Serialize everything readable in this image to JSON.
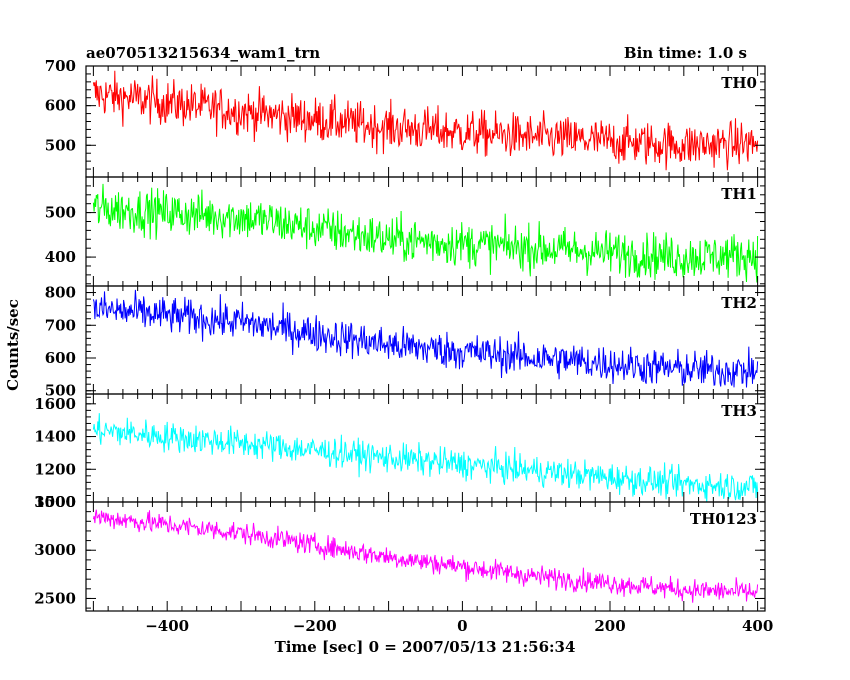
{
  "header": {
    "title": "ae070513215634_wam1_trn",
    "bin_time": "Bin time: 1.0 s"
  },
  "chart_data": {
    "type": "line",
    "xlabel": "Time [sec] 0 = 2007/05/13 21:56:34",
    "ylabel": "Counts/sec",
    "xlim": [
      -510,
      410
    ],
    "xticks": [
      -400,
      -200,
      0,
      200,
      400
    ],
    "panels": [
      {
        "name": "TH0",
        "color": "#ff0000",
        "ylim": [
          420,
          700
        ],
        "yticks": [
          500,
          600,
          700
        ],
        "trend": [
          [
            -500,
            630
          ],
          [
            -300,
            585
          ],
          [
            -100,
            545
          ],
          [
            100,
            520
          ],
          [
            300,
            500
          ],
          [
            400,
            505
          ]
        ],
        "noise": 28
      },
      {
        "name": "TH1",
        "color": "#00ff00",
        "ylim": [
          335,
          580
        ],
        "yticks": [
          400,
          500
        ],
        "trend": [
          [
            -500,
            510
          ],
          [
            -300,
            490
          ],
          [
            -100,
            440
          ],
          [
            100,
            420
          ],
          [
            300,
            400
          ],
          [
            400,
            405
          ]
        ],
        "noise": 25
      },
      {
        "name": "TH2",
        "color": "#0000ff",
        "ylim": [
          490,
          820
        ],
        "yticks": [
          500,
          600,
          700,
          800
        ],
        "trend": [
          [
            -500,
            750
          ],
          [
            -300,
            710
          ],
          [
            -100,
            640
          ],
          [
            100,
            600
          ],
          [
            300,
            565
          ],
          [
            400,
            560
          ]
        ],
        "noise": 28
      },
      {
        "name": "TH3",
        "color": "#00ffff",
        "ylim": [
          1000,
          1660
        ],
        "yticks": [
          1000,
          1200,
          1400,
          1600
        ],
        "trend": [
          [
            -500,
            1440
          ],
          [
            -300,
            1360
          ],
          [
            -100,
            1270
          ],
          [
            100,
            1190
          ],
          [
            300,
            1110
          ],
          [
            400,
            1090
          ]
        ],
        "noise": 45
      },
      {
        "name": "TH0123",
        "color": "#ff00ff",
        "ylim": [
          2370,
          3500
        ],
        "yticks": [
          2500,
          3000,
          3500
        ],
        "trend": [
          [
            -500,
            3350
          ],
          [
            -300,
            3180
          ],
          [
            -100,
            2930
          ],
          [
            100,
            2730
          ],
          [
            300,
            2590
          ],
          [
            400,
            2560
          ]
        ],
        "noise": 55
      }
    ]
  }
}
